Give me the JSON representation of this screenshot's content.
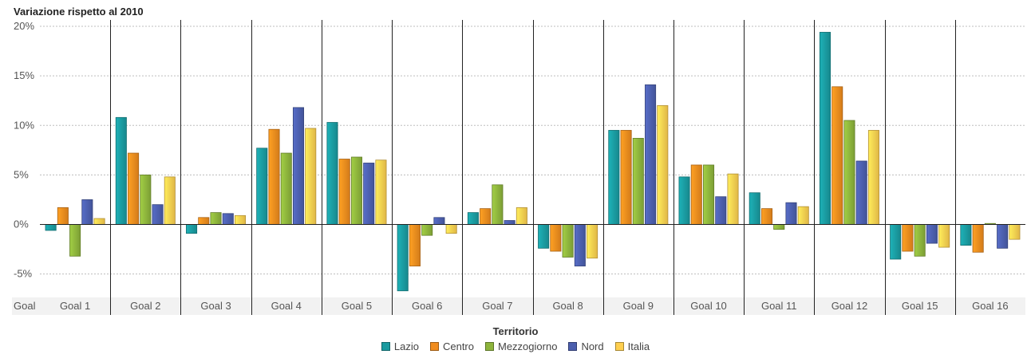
{
  "chart_data": {
    "type": "bar",
    "title": "Variazione rispetto al 2010",
    "ylim": [
      -7,
      20
    ],
    "yticks": [
      -5,
      0,
      5,
      10,
      15,
      20
    ],
    "ytick_labels": [
      "-5%",
      "0%",
      "5%",
      "10%",
      "15%",
      "20%"
    ],
    "grid": true,
    "x_axis_label": "Goal",
    "categories": [
      "Goal 1",
      "Goal 2",
      "Goal 3",
      "Goal 4",
      "Goal 5",
      "Goal 6",
      "Goal 7",
      "Goal 8",
      "Goal 9",
      "Goal 10",
      "Goal 11",
      "Goal 12",
      "Goal 15",
      "Goal 16"
    ],
    "legend_title": "Territorio",
    "legend_position": "bottom",
    "series": [
      {
        "name": "Lazio",
        "color": "#1a9ba0",
        "values": [
          -0.6,
          10.8,
          -0.9,
          7.7,
          10.3,
          -6.7,
          1.2,
          -2.4,
          9.5,
          4.8,
          3.2,
          19.4,
          -3.5,
          -2.1
        ]
      },
      {
        "name": "Centro",
        "color": "#f08c1e",
        "values": [
          1.7,
          7.2,
          0.7,
          9.6,
          6.6,
          -4.2,
          1.6,
          -2.7,
          9.5,
          6.0,
          1.6,
          13.9,
          -2.7,
          -2.8
        ]
      },
      {
        "name": "Mezzogiorno",
        "color": "#8db43c",
        "values": [
          -3.2,
          5.0,
          1.2,
          7.2,
          6.8,
          -1.1,
          4.0,
          -3.3,
          8.7,
          6.0,
          -0.5,
          10.5,
          -3.2,
          0.1
        ]
      },
      {
        "name": "Nord",
        "color": "#4c5fae",
        "values": [
          2.5,
          2.0,
          1.1,
          11.8,
          6.2,
          0.7,
          0.4,
          -4.2,
          14.1,
          2.8,
          2.2,
          6.4,
          -1.9,
          -2.4
        ]
      },
      {
        "name": "Italia",
        "color": "#ffcf4f",
        "values": [
          0.6,
          4.8,
          0.9,
          9.7,
          6.5,
          -0.9,
          1.7,
          -3.4,
          12.0,
          5.1,
          1.8,
          9.5,
          -2.3,
          -1.5
        ]
      }
    ]
  }
}
